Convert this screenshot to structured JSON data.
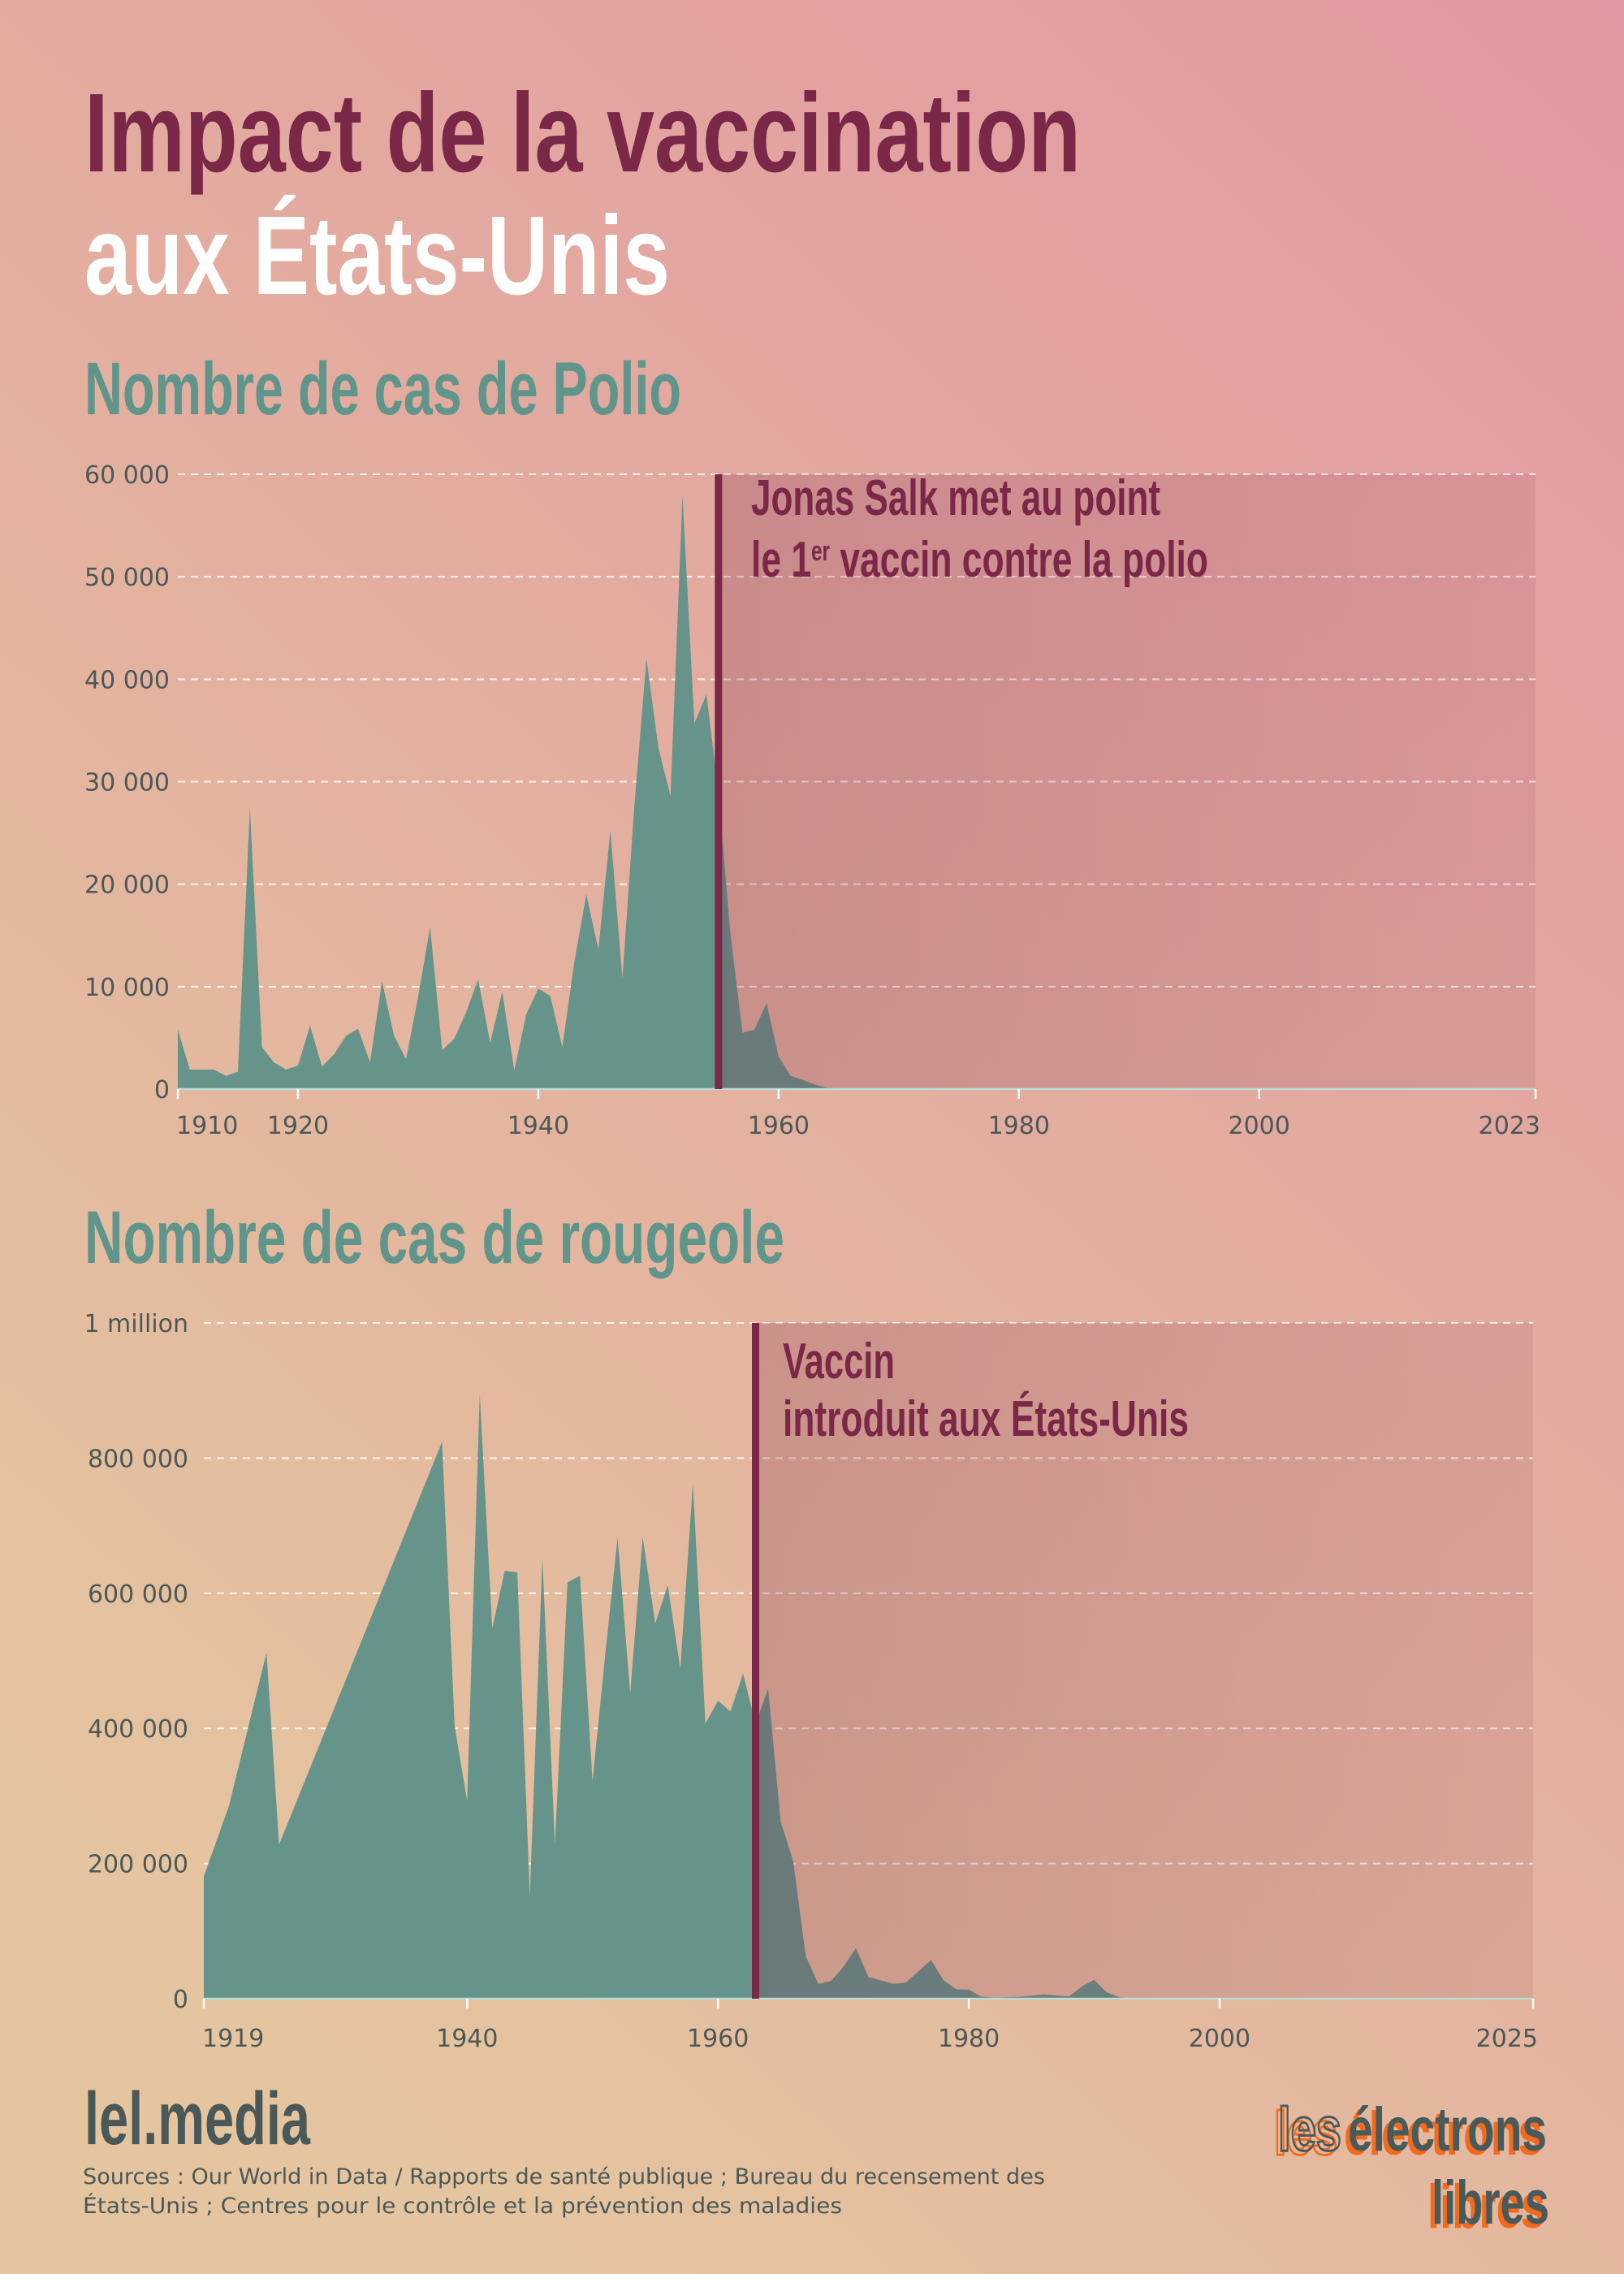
{
  "header": {
    "title_line1": "Impact de la vaccination",
    "title_line2": "aux États-Unis"
  },
  "colors": {
    "title": "#7a2748",
    "title_alt": "#ffffff",
    "subtitle": "#5f958b",
    "area": "#66938a",
    "vaccine_line": "#7a2748",
    "axis_text": "#4a5858",
    "logo_dark": "#4a5a5a",
    "logo_orange": "#f26a1b"
  },
  "chart_data": [
    {
      "type": "area",
      "title": "Nombre de cas de Polio",
      "xlabel": "",
      "ylabel": "",
      "xlim": [
        1910,
        2023
      ],
      "ylim": [
        0,
        60000
      ],
      "grid": true,
      "xticks": [
        1910,
        1920,
        1940,
        1960,
        1980,
        2000,
        2023
      ],
      "xtick_labels": [
        "1910",
        "1920",
        "1940",
        "1960",
        "1980",
        "2000",
        "2023"
      ],
      "yticks": [
        0,
        10000,
        20000,
        30000,
        40000,
        50000,
        60000
      ],
      "ytick_labels": [
        "0",
        "10 000",
        "20 000",
        "30 000",
        "40 000",
        "50 000",
        "60 000"
      ],
      "x": [
        1910,
        1911,
        1912,
        1913,
        1914,
        1915,
        1916,
        1917,
        1918,
        1919,
        1920,
        1921,
        1922,
        1923,
        1924,
        1925,
        1926,
        1927,
        1928,
        1929,
        1930,
        1931,
        1932,
        1933,
        1934,
        1935,
        1936,
        1937,
        1938,
        1939,
        1940,
        1941,
        1942,
        1943,
        1944,
        1945,
        1946,
        1947,
        1948,
        1949,
        1950,
        1951,
        1952,
        1953,
        1954,
        1955,
        1956,
        1957,
        1958,
        1959,
        1960,
        1961,
        1962,
        1963,
        1964,
        1965,
        1970,
        1980,
        1990,
        2000,
        2023
      ],
      "y": [
        5800,
        1900,
        1900,
        1900,
        1300,
        1700,
        27400,
        4100,
        2600,
        1900,
        2300,
        6200,
        2200,
        3400,
        5200,
        5900,
        2600,
        10500,
        5200,
        2900,
        9000,
        15800,
        3800,
        4900,
        7500,
        10700,
        4500,
        9500,
        1800,
        7300,
        9800,
        9100,
        4100,
        12400,
        19000,
        13600,
        25200,
        10800,
        27700,
        42000,
        33300,
        28600,
        57900,
        35700,
        38500,
        29000,
        15100,
        5500,
        5800,
        8400,
        3200,
        1300,
        900,
        450,
        120,
        70,
        30,
        10,
        5,
        0,
        0
      ],
      "annotation": {
        "x": 1955,
        "line1": "Jonas Salk met au point",
        "line2_a": "le 1",
        "line2_sup": "er",
        "line2_b": " vaccin contre la polio"
      }
    },
    {
      "type": "area",
      "title": "Nombre de cas de rougeole",
      "xlabel": "",
      "ylabel": "",
      "xlim": [
        1919,
        2025
      ],
      "ylim": [
        0,
        1000000
      ],
      "grid": true,
      "xticks": [
        1919,
        1940,
        1960,
        1980,
        2000,
        2025
      ],
      "xtick_labels": [
        "1919",
        "1940",
        "1960",
        "1980",
        "2000",
        "2025"
      ],
      "yticks": [
        0,
        200000,
        400000,
        600000,
        800000,
        1000000
      ],
      "ytick_labels": [
        "0",
        "200 000",
        "400 000",
        "600 000",
        "800 000",
        "1 million"
      ],
      "x": [
        1919,
        1921,
        1924,
        1925,
        1938,
        1939,
        1940,
        1941,
        1942,
        1943,
        1944,
        1945,
        1946,
        1947,
        1948,
        1949,
        1950,
        1951,
        1952,
        1953,
        1954,
        1955,
        1956,
        1957,
        1958,
        1959,
        1960,
        1961,
        1962,
        1963,
        1964,
        1965,
        1966,
        1967,
        1968,
        1969,
        1970,
        1971,
        1972,
        1973,
        1974,
        1975,
        1976,
        1977,
        1978,
        1979,
        1980,
        1981,
        1982,
        1984,
        1986,
        1988,
        1989,
        1990,
        1991,
        1992,
        1993,
        2000,
        2010,
        2014,
        2019,
        2020,
        2025
      ],
      "y": [
        181000,
        285000,
        512000,
        228000,
        824000,
        403000,
        293000,
        895000,
        548000,
        633000,
        631000,
        152000,
        652000,
        228000,
        616000,
        626000,
        322000,
        507000,
        683000,
        452000,
        683000,
        555000,
        612000,
        488000,
        763000,
        407000,
        441000,
        425000,
        481000,
        407000,
        459000,
        262000,
        204000,
        63000,
        22000,
        26000,
        47000,
        75000,
        32000,
        27000,
        22000,
        24000,
        41000,
        57000,
        27000,
        14000,
        13500,
        3000,
        1700,
        2600,
        6300,
        3400,
        18000,
        28000,
        9600,
        2200,
        300,
        90,
        60,
        670,
        1270,
        13,
        1500
      ],
      "annotation": {
        "x": 1963,
        "line1": "Vaccin",
        "line2": "introduit aux États-Unis"
      }
    }
  ],
  "footer": {
    "brand": "lel.media",
    "sources_line1": "Sources : Our World in Data / Rapports de santé publique ; Bureau du recensement des",
    "sources_line2": "États-Unis ; Centres pour le contrôle et la prévention des maladies"
  },
  "logo": {
    "word1": "les",
    "word2": "électrons",
    "word3": "libres"
  }
}
